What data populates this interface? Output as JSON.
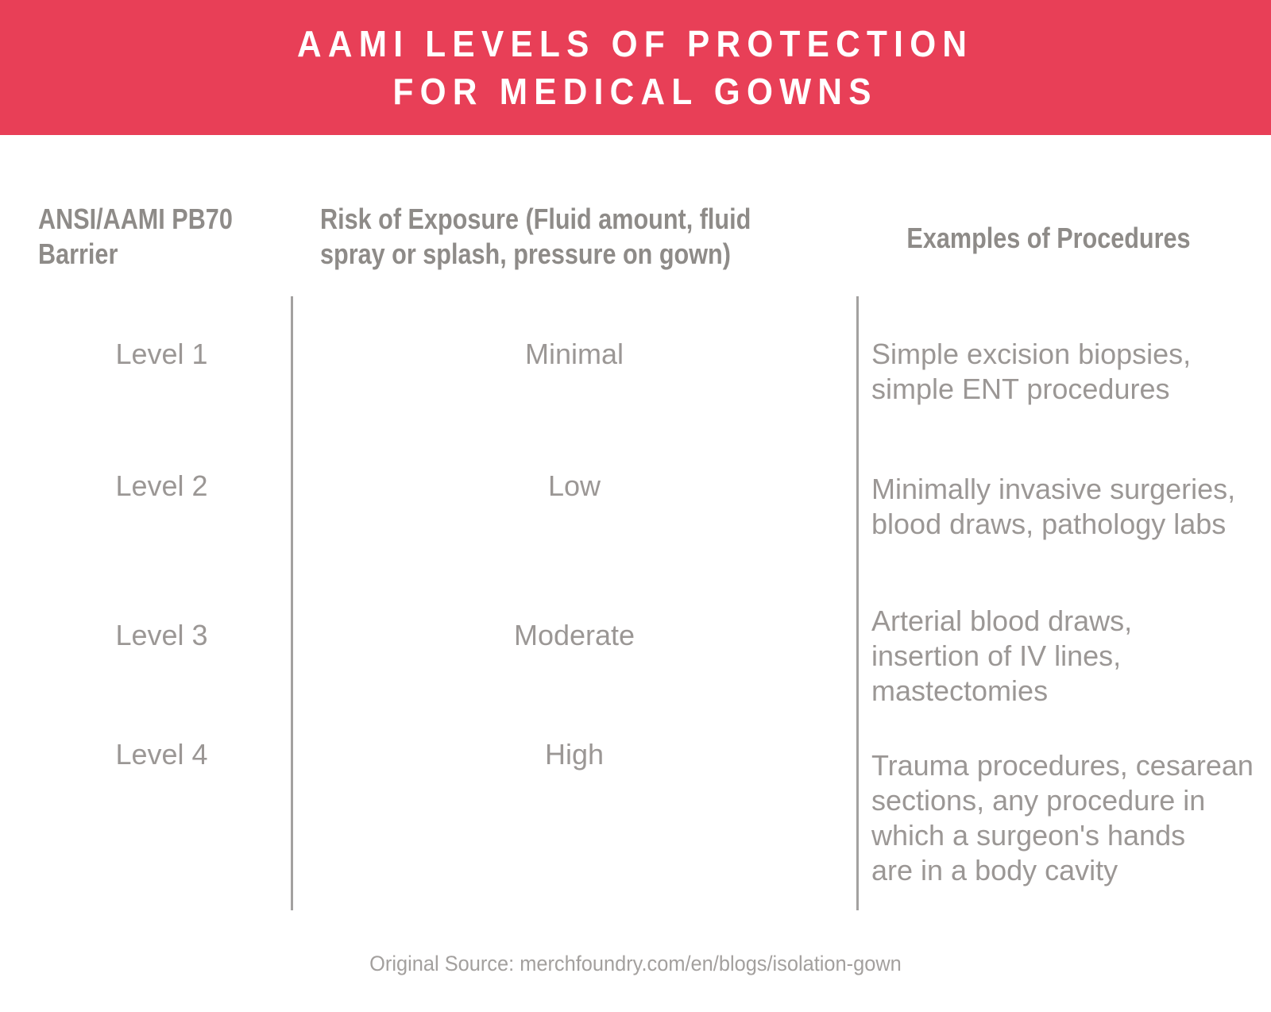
{
  "banner": {
    "title_line1": "AAMI LEVELS OF PROTECTION",
    "title_line2": "FOR MEDICAL GOWNS"
  },
  "table": {
    "column_headers": [
      "ANSI/AAMI PB70\nBarrier",
      "Risk of Exposure (Fluid amount, fluid\nspray or splash, pressure on gown)",
      "Examples of Procedures"
    ],
    "rows": [
      {
        "level": "Level 1",
        "risk": "Minimal",
        "examples": "Simple excision biopsies,\nsimple ENT procedures"
      },
      {
        "level": "Level 2",
        "risk": "Low",
        "examples": "Minimally invasive surgeries,\nblood draws, pathology labs"
      },
      {
        "level": "Level 3",
        "risk": "Moderate",
        "examples": "Arterial blood draws,\ninsertion of IV lines,\nmastectomies"
      },
      {
        "level": "Level 4",
        "risk": "High",
        "examples": "Trauma procedures, cesarean\nsections, any procedure in\nwhich a surgeon's hands\nare in a body cavity"
      }
    ]
  },
  "footer": {
    "source_text": "Original Source: merchfoundry.com/en/blogs/isolation-gown"
  },
  "colors": {
    "banner_red": "#e83f57",
    "title_white": "#ffffff",
    "header_gray": "#8e8b88",
    "body_gray": "#9b9795",
    "divider_gray": "#a3a1a0",
    "footer_gray": "#a3a09e"
  },
  "chart_data": {
    "type": "table",
    "title": "AAMI LEVELS OF PROTECTION FOR MEDICAL GOWNS",
    "columns": [
      "ANSI/AAMI PB70 Barrier",
      "Risk of Exposure (Fluid amount, fluid spray or splash, pressure on gown)",
      "Examples of Procedures"
    ],
    "rows": [
      [
        "Level 1",
        "Minimal",
        "Simple excision biopsies, simple ENT procedures"
      ],
      [
        "Level 2",
        "Low",
        "Minimally invasive surgeries, blood draws, pathology labs"
      ],
      [
        "Level 3",
        "Moderate",
        "Arterial blood draws, insertion of IV lines, mastectomies"
      ],
      [
        "Level 4",
        "High",
        "Trauma procedures, cesarean sections, any procedure in which a surgeon's hands are in a body cavity"
      ]
    ],
    "legend_position": "none",
    "grid": "vertical-dividers-only"
  }
}
